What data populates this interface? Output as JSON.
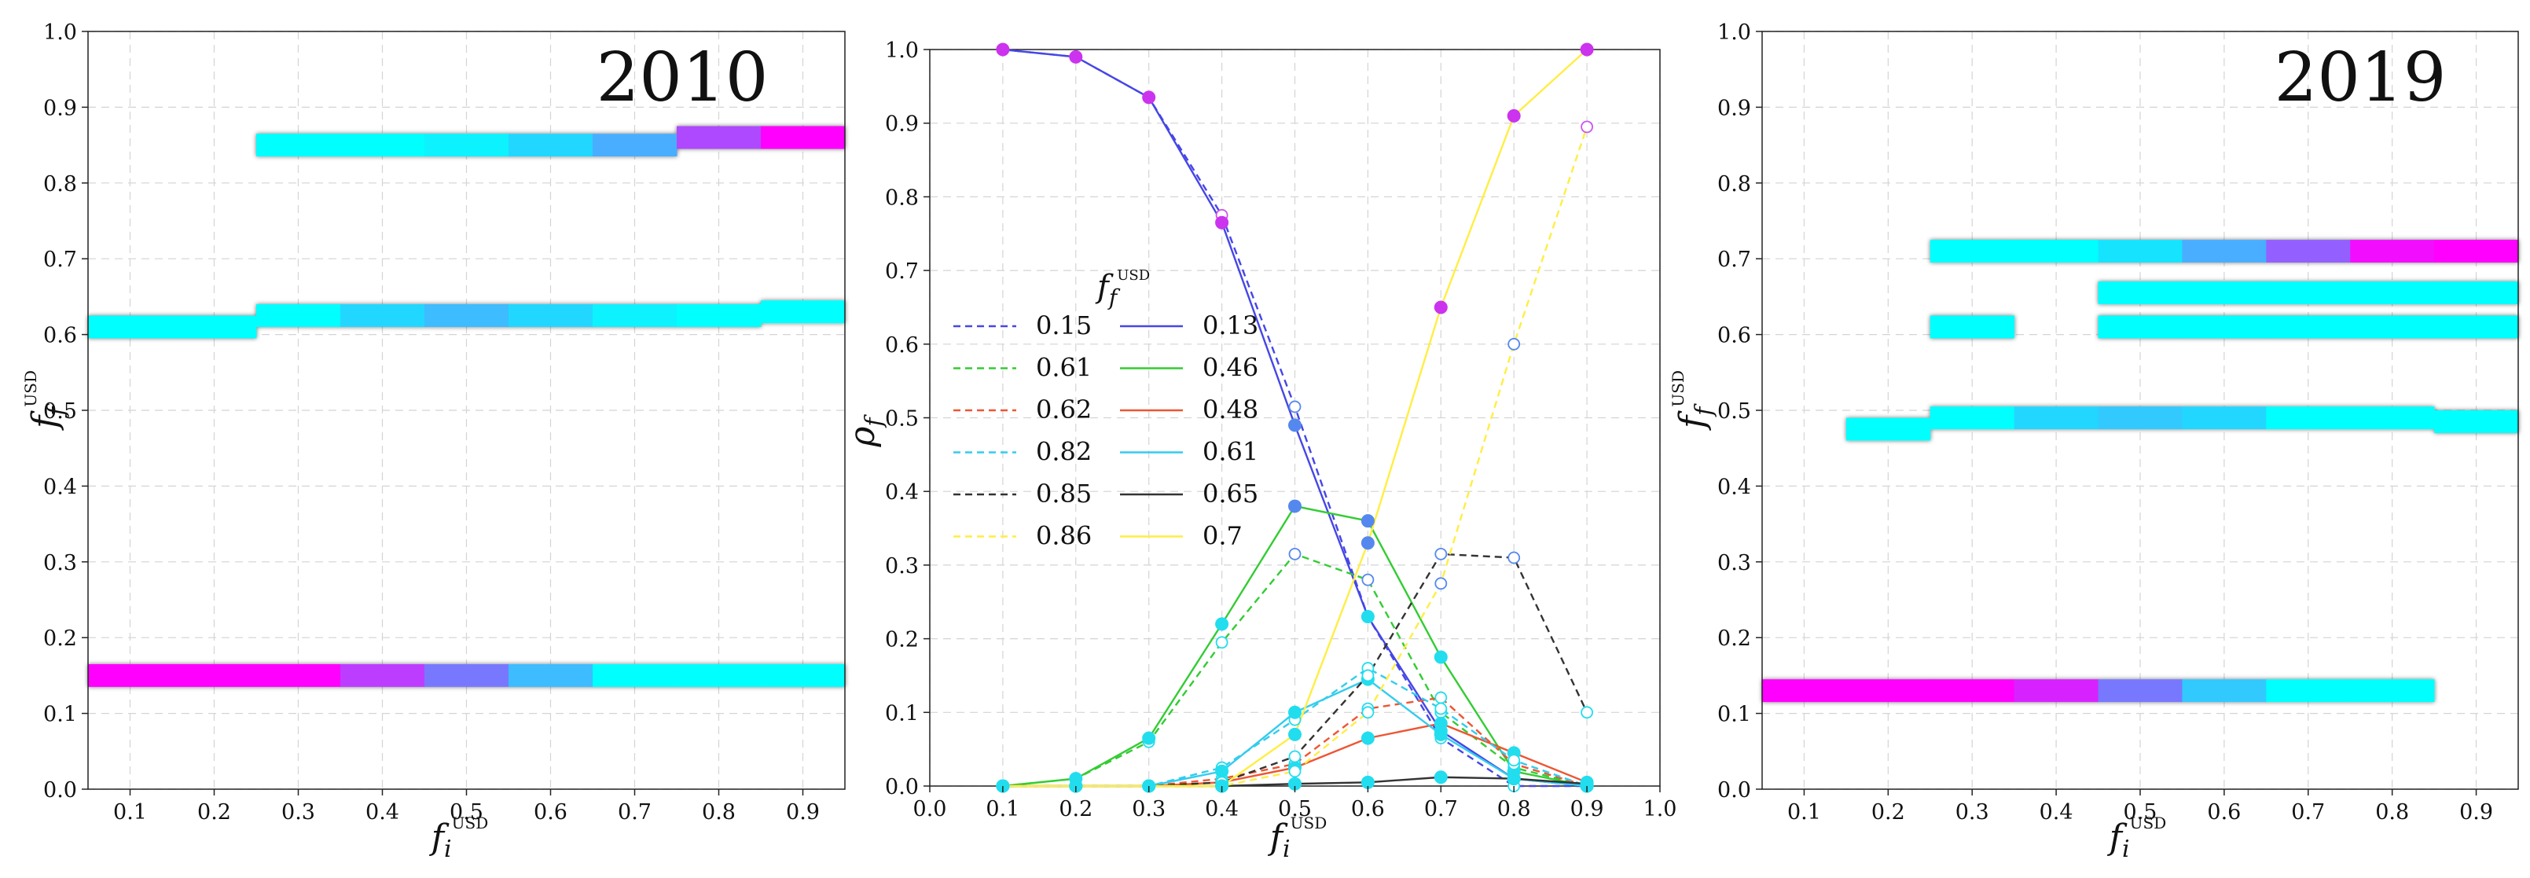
{
  "colors": {
    "cyan": "#00ffff",
    "magenta": "#ff00ff",
    "blue": "#4646e6",
    "green": "#33cc33",
    "red": "#ee5533",
    "lightblue": "#33ccee",
    "black": "#333333",
    "yellow": "#ffee44"
  },
  "chart_data": [
    {
      "type": "heatmap",
      "panel": "left",
      "title": "2010",
      "xlabel": "f_i^USD",
      "xlabel_main": "f",
      "xlabel_sub": "i",
      "xlabel_sup": "USD",
      "ylabel_main": "f",
      "ylabel_sub": "f",
      "ylabel_sup": "USD",
      "xlim": [
        0.05,
        0.95
      ],
      "ylim": [
        0.0,
        1.0
      ],
      "xticks": [
        "0.1",
        "0.2",
        "0.3",
        "0.4",
        "0.5",
        "0.6",
        "0.7",
        "0.8",
        "0.9"
      ],
      "yticks": [
        "0.0",
        "0.1",
        "0.2",
        "0.3",
        "0.4",
        "0.5",
        "0.6",
        "0.7",
        "0.8",
        "0.9",
        "1.0"
      ],
      "bands": [
        {
          "x": [
            0.05,
            0.15,
            0.25,
            0.35,
            0.45,
            0.55,
            0.65,
            0.75,
            0.85
          ],
          "y": [
            0.15,
            0.15,
            0.15,
            0.15,
            0.15,
            0.15,
            0.15,
            0.15,
            0.15
          ],
          "v": [
            1.0,
            1.0,
            1.0,
            0.75,
            0.5,
            0.25,
            0.0,
            0.0,
            0.0
          ]
        },
        {
          "x": [
            0.05,
            0.15,
            0.25,
            0.35,
            0.45,
            0.55,
            0.65,
            0.75,
            0.85
          ],
          "y": [
            0.61,
            0.61,
            0.625,
            0.625,
            0.625,
            0.625,
            0.625,
            0.625,
            0.63
          ],
          "v": [
            0.0,
            0.0,
            0.0,
            0.15,
            0.25,
            0.15,
            0.05,
            0.0,
            0.0
          ]
        },
        {
          "x": [
            0.25,
            0.35,
            0.45,
            0.55,
            0.65,
            0.75,
            0.85
          ],
          "y": [
            0.85,
            0.85,
            0.85,
            0.85,
            0.85,
            0.86,
            0.86
          ],
          "v": [
            0.0,
            0.0,
            0.05,
            0.15,
            0.3,
            0.7,
            1.0
          ]
        }
      ]
    },
    {
      "type": "line",
      "panel": "middle",
      "xlabel": "f_i^USD",
      "xlabel_main": "f",
      "xlabel_sub": "i",
      "xlabel_sup": "USD",
      "ylabel_main": "ρ",
      "ylabel_sub": "f",
      "xlim": [
        0.0,
        1.0
      ],
      "ylim": [
        0.0,
        1.0
      ],
      "xticks": [
        "0.0",
        "0.1",
        "0.2",
        "0.3",
        "0.4",
        "0.5",
        "0.6",
        "0.7",
        "0.8",
        "0.9",
        "1.0"
      ],
      "yticks": [
        "0.0",
        "0.1",
        "0.2",
        "0.3",
        "0.4",
        "0.5",
        "0.6",
        "0.7",
        "0.8",
        "0.9",
        "1.0"
      ],
      "legend_title_main": "f",
      "legend_title_sub": "f",
      "legend_title_sup": "USD",
      "legend_position": "center-left",
      "x": [
        0.1,
        0.2,
        0.3,
        0.4,
        0.5,
        0.6,
        0.7,
        0.8,
        0.9
      ],
      "series": [
        {
          "name": "0.15",
          "color": "blue",
          "dash": true,
          "values": [
            1.0,
            0.99,
            0.935,
            0.775,
            0.515,
            0.23,
            0.065,
            0.0,
            0.0
          ]
        },
        {
          "name": "0.13",
          "color": "blue",
          "dash": false,
          "values": [
            1.0,
            0.99,
            0.935,
            0.765,
            0.49,
            0.23,
            0.075,
            0.01,
            0.0
          ]
        },
        {
          "name": "0.61",
          "color": "green",
          "dash": true,
          "values": [
            0.0,
            0.01,
            0.06,
            0.195,
            0.315,
            0.28,
            0.1,
            0.025,
            0.0
          ]
        },
        {
          "name": "0.46",
          "color": "green",
          "dash": false,
          "values": [
            0.0,
            0.01,
            0.065,
            0.22,
            0.38,
            0.36,
            0.175,
            0.02,
            0.0
          ]
        },
        {
          "name": "0.62",
          "color": "red",
          "dash": true,
          "values": [
            0.0,
            0.0,
            0.0,
            0.01,
            0.03,
            0.105,
            0.12,
            0.03,
            0.0
          ]
        },
        {
          "name": "0.48",
          "color": "red",
          "dash": false,
          "values": [
            0.0,
            0.0,
            0.0,
            0.005,
            0.025,
            0.065,
            0.085,
            0.045,
            0.005
          ]
        },
        {
          "name": "0.82",
          "color": "lightblue",
          "dash": true,
          "values": [
            0.0,
            0.0,
            0.0,
            0.025,
            0.09,
            0.16,
            0.105,
            0.035,
            0.0
          ]
        },
        {
          "name": "0.61",
          "color": "lightblue",
          "dash": false,
          "values": [
            0.0,
            0.0,
            0.0,
            0.02,
            0.1,
            0.145,
            0.07,
            0.01,
            0.0
          ]
        },
        {
          "name": "0.85",
          "color": "black",
          "dash": true,
          "values": [
            0.0,
            0.0,
            0.0,
            0.005,
            0.04,
            0.15,
            0.315,
            0.31,
            0.1
          ]
        },
        {
          "name": "0.65",
          "color": "black",
          "dash": false,
          "values": [
            0.0,
            0.0,
            0.0,
            0.0,
            0.003,
            0.005,
            0.012,
            0.01,
            0.003
          ]
        },
        {
          "name": "0.86",
          "color": "yellow",
          "dash": true,
          "values": [
            0.0,
            0.0,
            0.0,
            0.0,
            0.02,
            0.1,
            0.275,
            0.6,
            0.895
          ]
        },
        {
          "name": "0.7",
          "color": "yellow",
          "dash": false,
          "values": [
            0.0,
            0.0,
            0.0,
            0.0,
            0.07,
            0.33,
            0.65,
            0.91,
            1.0
          ]
        }
      ]
    },
    {
      "type": "heatmap",
      "panel": "right",
      "title": "2019",
      "xlabel": "f_i^USD",
      "xlabel_main": "f",
      "xlabel_sub": "i",
      "xlabel_sup": "USD",
      "ylabel_main": "f",
      "ylabel_sub": "f",
      "ylabel_sup": "USD",
      "xlim": [
        0.05,
        0.95
      ],
      "ylim": [
        0.0,
        1.0
      ],
      "xticks": [
        "0.1",
        "0.2",
        "0.3",
        "0.4",
        "0.5",
        "0.6",
        "0.7",
        "0.8",
        "0.9"
      ],
      "yticks": [
        "0.0",
        "0.1",
        "0.2",
        "0.3",
        "0.4",
        "0.5",
        "0.6",
        "0.7",
        "0.8",
        "0.9",
        "1.0"
      ],
      "bands": [
        {
          "x": [
            0.05,
            0.15,
            0.25,
            0.35,
            0.45,
            0.55,
            0.65,
            0.75
          ],
          "y": [
            0.13,
            0.13,
            0.13,
            0.13,
            0.13,
            0.13,
            0.13,
            0.13
          ],
          "v": [
            1.0,
            1.0,
            1.0,
            0.85,
            0.5,
            0.2,
            0.0,
            0.0
          ]
        },
        {
          "x": [
            0.15,
            0.25,
            0.35,
            0.45,
            0.55,
            0.65,
            0.75,
            0.85
          ],
          "y": [
            0.475,
            0.49,
            0.49,
            0.49,
            0.49,
            0.49,
            0.49,
            0.485
          ],
          "v": [
            0.0,
            0.0,
            0.15,
            0.2,
            0.15,
            0.0,
            0.0,
            0.0
          ]
        },
        {
          "x": [
            0.25
          ],
          "y": [
            0.61
          ],
          "v": [
            0.0
          ]
        },
        {
          "x": [
            0.45,
            0.55,
            0.65,
            0.75,
            0.85
          ],
          "y": [
            0.61,
            0.61,
            0.61,
            0.61,
            0.61
          ],
          "v": [
            0.0,
            0.0,
            0.0,
            0.0,
            0.0
          ]
        },
        {
          "x": [
            0.45,
            0.55,
            0.65,
            0.75,
            0.85
          ],
          "y": [
            0.655,
            0.655,
            0.655,
            0.655,
            0.655
          ],
          "v": [
            0.0,
            0.0,
            0.0,
            0.0,
            0.0
          ]
        },
        {
          "x": [
            0.25,
            0.35,
            0.45,
            0.55,
            0.65,
            0.75,
            0.85
          ],
          "y": [
            0.71,
            0.71,
            0.71,
            0.71,
            0.71,
            0.71,
            0.71
          ],
          "v": [
            0.0,
            0.0,
            0.1,
            0.3,
            0.6,
            0.95,
            1.0
          ]
        }
      ]
    }
  ]
}
